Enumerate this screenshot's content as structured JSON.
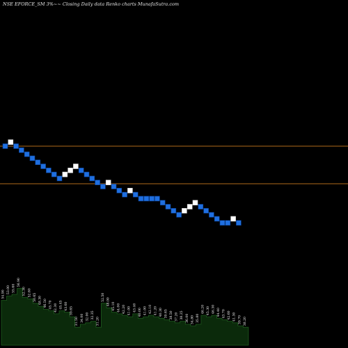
{
  "chart_data": {
    "type": "renko",
    "title": "NSE EFORCE_SM 3%~~ Closing Daily data Renko charts MunafaSutra.com",
    "colors": {
      "up": "#ffffff",
      "down": "#1f6fe0",
      "reference_line": "#b06a1a",
      "volume_fill": "#0b2a0b",
      "volume_line": "#1e5a1e",
      "background": "#000000"
    },
    "reference_lines": [
      "upper",
      "lower"
    ],
    "bricks": [
      {
        "dir": "down",
        "level": 20
      },
      {
        "dir": "up",
        "level": 21
      },
      {
        "dir": "down",
        "level": 20
      },
      {
        "dir": "down",
        "level": 19
      },
      {
        "dir": "down",
        "level": 18
      },
      {
        "dir": "down",
        "level": 17
      },
      {
        "dir": "down",
        "level": 16
      },
      {
        "dir": "down",
        "level": 15
      },
      {
        "dir": "down",
        "level": 14
      },
      {
        "dir": "down",
        "level": 13
      },
      {
        "dir": "down",
        "level": 12
      },
      {
        "dir": "up",
        "level": 13
      },
      {
        "dir": "up",
        "level": 14
      },
      {
        "dir": "up",
        "level": 15
      },
      {
        "dir": "down",
        "level": 14
      },
      {
        "dir": "down",
        "level": 13
      },
      {
        "dir": "down",
        "level": 12
      },
      {
        "dir": "down",
        "level": 11
      },
      {
        "dir": "down",
        "level": 10
      },
      {
        "dir": "up",
        "level": 11
      },
      {
        "dir": "down",
        "level": 10
      },
      {
        "dir": "down",
        "level": 9
      },
      {
        "dir": "down",
        "level": 8
      },
      {
        "dir": "up",
        "level": 9
      },
      {
        "dir": "down",
        "level": 8
      },
      {
        "dir": "down",
        "level": 7
      },
      {
        "dir": "down",
        "level": 7
      },
      {
        "dir": "down",
        "level": 7
      },
      {
        "dir": "down",
        "level": 7
      },
      {
        "dir": "down",
        "level": 6
      },
      {
        "dir": "down",
        "level": 5
      },
      {
        "dir": "down",
        "level": 4
      },
      {
        "dir": "down",
        "level": 3
      },
      {
        "dir": "up",
        "level": 4
      },
      {
        "dir": "up",
        "level": 5
      },
      {
        "dir": "up",
        "level": 6
      },
      {
        "dir": "down",
        "level": 5
      },
      {
        "dir": "down",
        "level": 4
      },
      {
        "dir": "down",
        "level": 3
      },
      {
        "dir": "down",
        "level": 2
      },
      {
        "dir": "down",
        "level": 1
      },
      {
        "dir": "down",
        "level": 1
      },
      {
        "dir": "up",
        "level": 2
      },
      {
        "dir": "down",
        "level": 1
      }
    ],
    "volume_labels": [
      "54.90",
      "53.00",
      "55.60",
      "56.90",
      "52.30",
      "52.60",
      "50.65",
      "48.30",
      "46.50",
      "45.70",
      "42.30",
      "45.45",
      "43.60",
      "39.65",
      "31.50",
      "34.00",
      "32.00",
      "32.35",
      "31.20",
      "52.50",
      "48.00",
      "45.10",
      "44.00",
      "42.20",
      "41.00",
      "43.40",
      "40.00",
      "41.00",
      "42.10",
      "41.20",
      "40.30",
      "39.65",
      "38.50",
      "37.20",
      "38.25",
      "36.00",
      "34.80",
      "35.80",
      "46.20",
      "45.30",
      "46.30",
      "44.40",
      "43.70",
      "42.60",
      "41.30",
      "39.70",
      "38.20"
    ],
    "volume_values": [
      30,
      33,
      34,
      38,
      32,
      31,
      28,
      26,
      24,
      23,
      21,
      23,
      22,
      19,
      12,
      14,
      15,
      16,
      12,
      28,
      25,
      22,
      21,
      20,
      19,
      21,
      18,
      19,
      20,
      19,
      18,
      17,
      16,
      15,
      16,
      14,
      13,
      14,
      20,
      19,
      20,
      18,
      17,
      16,
      15,
      13,
      12
    ]
  }
}
